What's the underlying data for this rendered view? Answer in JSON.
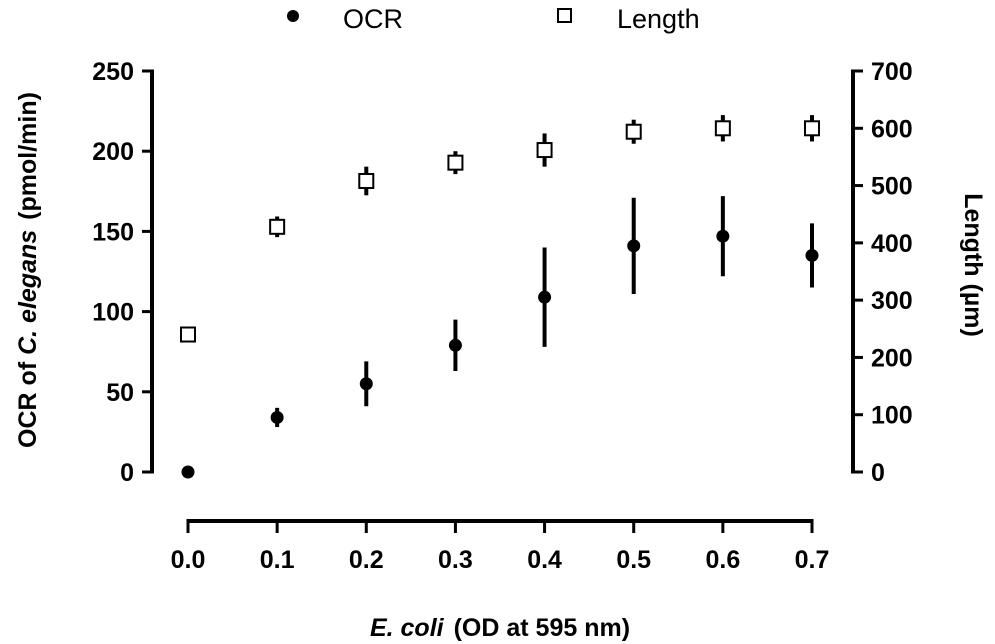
{
  "chart_data": {
    "type": "scatter",
    "title": "",
    "xlabel": "E. coli  (OD at 595 nm)",
    "xlabel_parts": {
      "italic": "E. coli",
      "rest": "(OD at 595 nm)"
    },
    "ylabel_left": "OCR of C. elegans  (pmol/min)",
    "ylabel_left_parts": {
      "pre": "OCR of ",
      "italic": "C. elegans",
      "post": "(pmol/min)"
    },
    "ylabel_right": "Length (µm)",
    "x": [
      0.0,
      0.1,
      0.2,
      0.3,
      0.4,
      0.5,
      0.6,
      0.7
    ],
    "x_ticks": [
      "0.0",
      "0.1",
      "0.2",
      "0.3",
      "0.4",
      "0.5",
      "0.6",
      "0.7"
    ],
    "xlim": [
      0.0,
      0.7
    ],
    "ylim_left": [
      0,
      250
    ],
    "y_ticks_left": [
      "0",
      "50",
      "100",
      "150",
      "200",
      "250"
    ],
    "ylim_right": [
      0,
      700
    ],
    "y_ticks_right": [
      "0",
      "100",
      "200",
      "300",
      "400",
      "500",
      "600",
      "700"
    ],
    "grid": false,
    "legend_position": "top",
    "series": [
      {
        "name": "OCR",
        "axis": "left",
        "marker": "filled-circle",
        "values": [
          0,
          34,
          55,
          79,
          109,
          141,
          147,
          135
        ],
        "error": [
          0,
          6,
          14,
          16,
          31,
          30,
          25,
          20
        ]
      },
      {
        "name": "Length",
        "axis": "right",
        "marker": "open-square",
        "values": [
          240,
          428,
          508,
          540,
          562,
          594,
          600,
          600
        ],
        "error": [
          0,
          18,
          25,
          20,
          29,
          21,
          23,
          23
        ]
      }
    ]
  },
  "legend": {
    "items": [
      {
        "label": "OCR",
        "marker": "filled-circle"
      },
      {
        "label": "Length",
        "marker": "open-square"
      }
    ]
  }
}
